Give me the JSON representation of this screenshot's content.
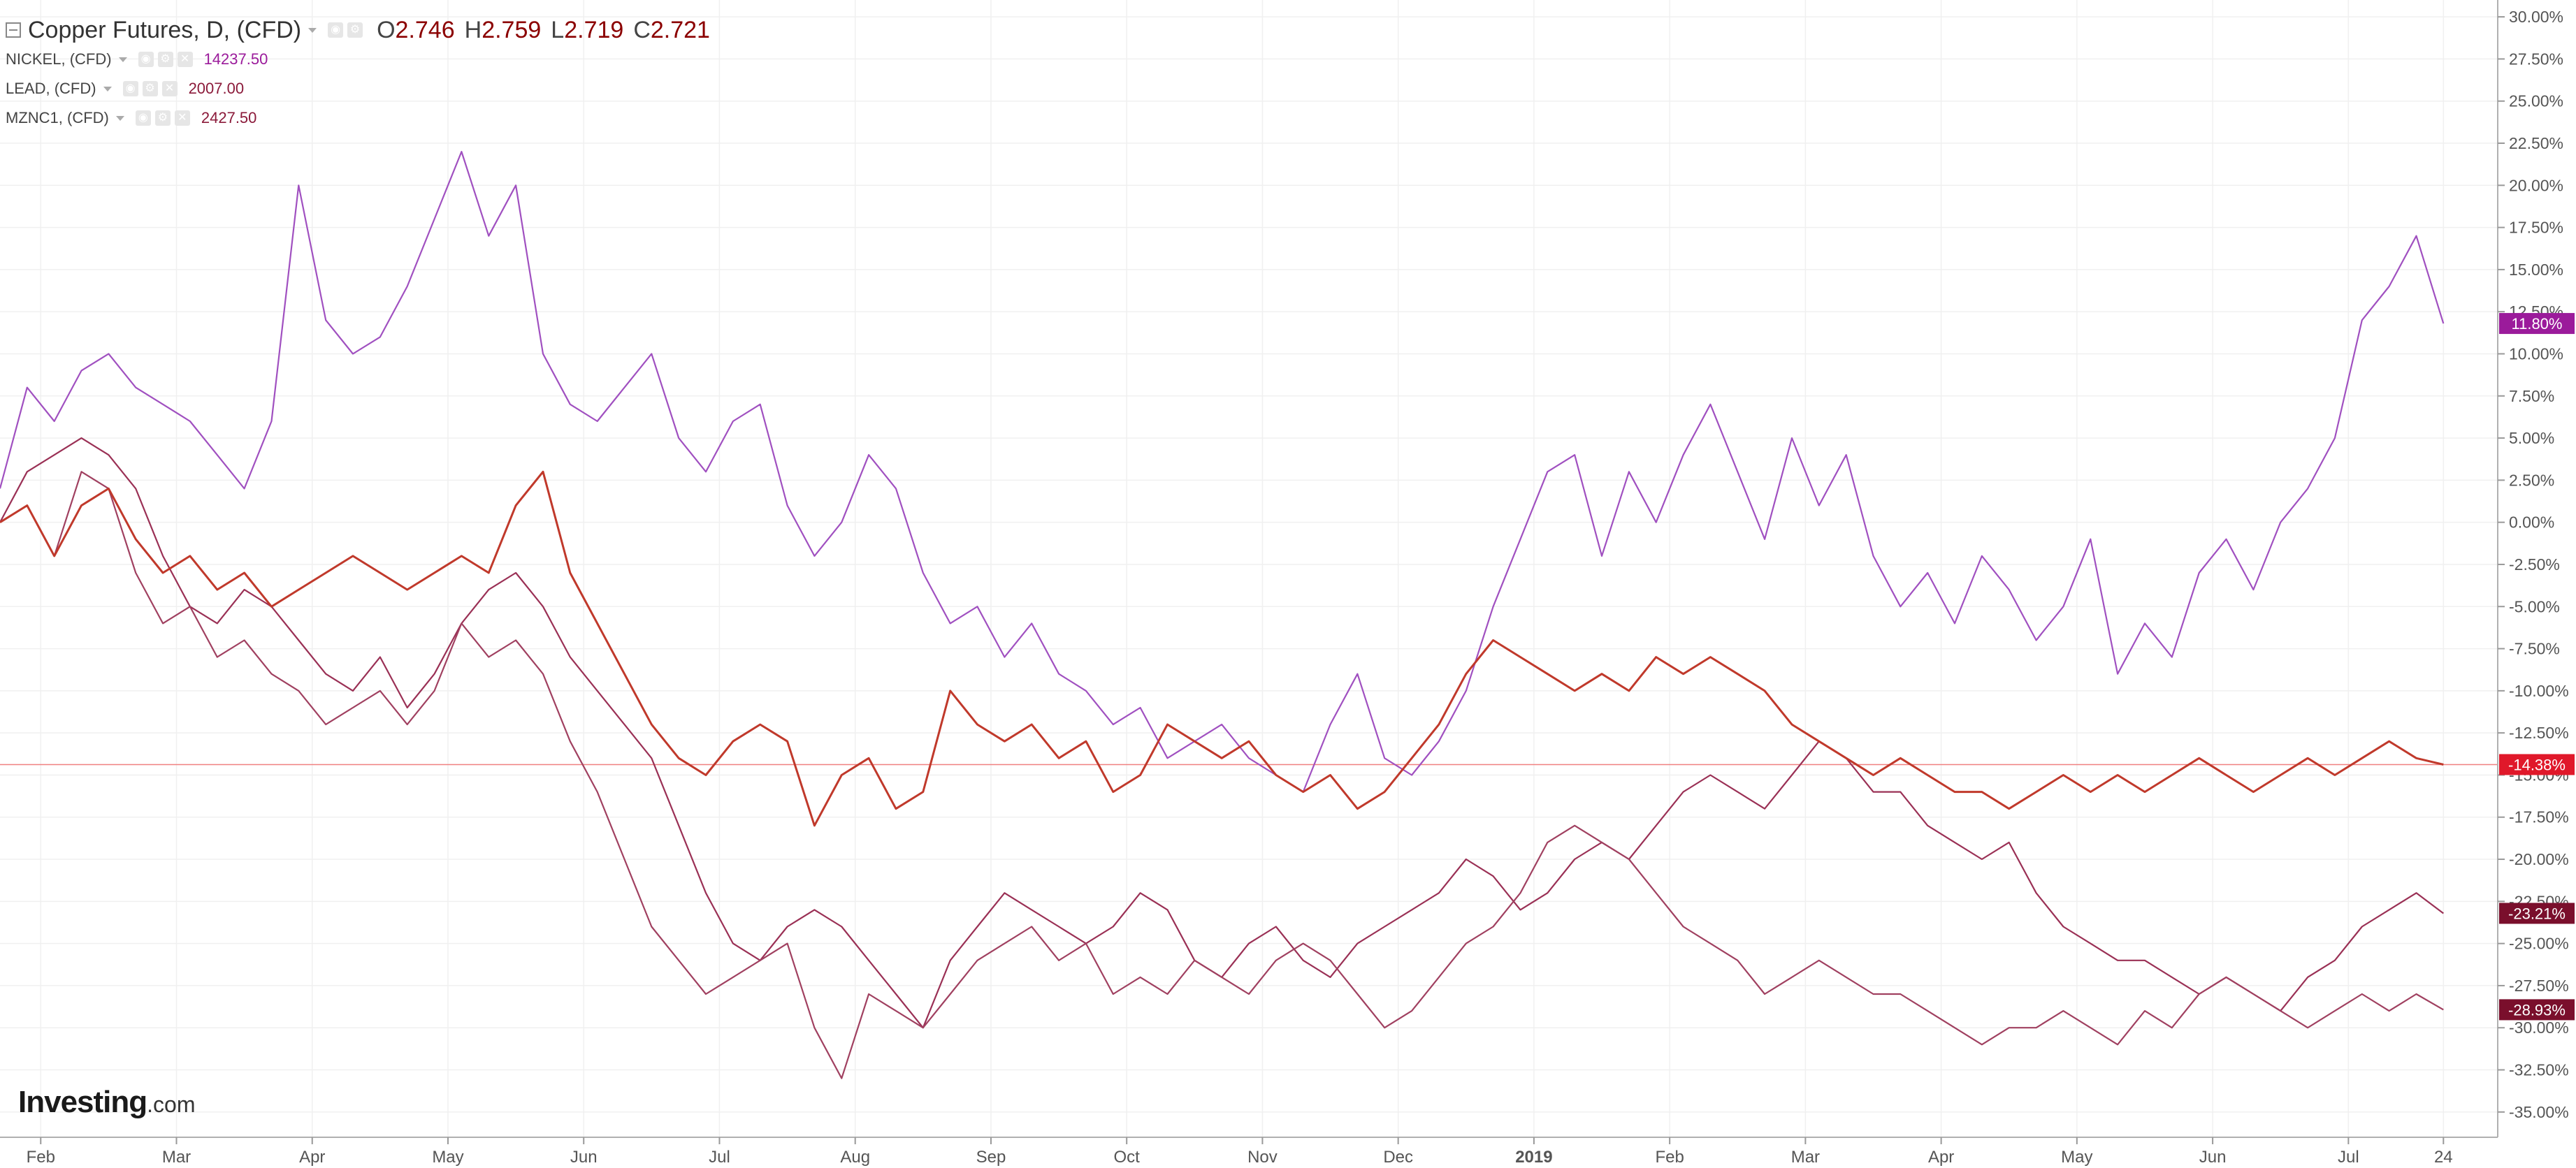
{
  "header": {
    "main_label": "Copper Futures, D, (CFD)",
    "ohlc": {
      "o_label": "O",
      "o": "2.746",
      "h_label": "H",
      "h": "2.759",
      "l_label": "L",
      "l": "2.719",
      "c_label": "C",
      "c": "2.721"
    },
    "series_rows": [
      {
        "label": "NICKEL, (CFD)",
        "value": "14237.50",
        "color": "#9b1b9b"
      },
      {
        "label": "LEAD, (CFD)",
        "value": "2007.00",
        "color": "#8b1a3a"
      },
      {
        "label": "MZNC1, (CFD)",
        "value": "2427.50",
        "color": "#8b1a3a"
      }
    ]
  },
  "branding": {
    "logo_main": "Investing",
    "logo_suffix": ".com"
  },
  "chart_data": {
    "type": "line",
    "title": "Copper Futures, D, (CFD)",
    "y_axis": {
      "side": "right",
      "unit": "%",
      "ylim": [
        -36.5,
        31
      ],
      "ticks": [
        "30.00%",
        "27.50%",
        "25.00%",
        "22.50%",
        "20.00%",
        "17.50%",
        "15.00%",
        "12.50%",
        "10.00%",
        "7.50%",
        "5.00%",
        "2.50%",
        "0.00%",
        "-2.50%",
        "-5.00%",
        "-7.50%",
        "-10.00%",
        "-12.50%",
        "-15.00%",
        "-17.50%",
        "-20.00%",
        "-22.50%",
        "-25.00%",
        "-27.50%",
        "-30.00%",
        "-32.50%",
        "-35.00%"
      ]
    },
    "x_axis": {
      "labels": [
        "Feb",
        "Mar",
        "Apr",
        "May",
        "Jun",
        "Jul",
        "Aug",
        "Sep",
        "Oct",
        "Nov",
        "Dec",
        "2019",
        "Feb",
        "Mar",
        "Apr",
        "May",
        "Jun",
        "Jul",
        "24"
      ],
      "label_pos": [
        0.3,
        1.3,
        2.3,
        3.3,
        4.3,
        5.3,
        6.3,
        7.3,
        8.3,
        9.3,
        10.3,
        11.3,
        12.3,
        13.3,
        14.3,
        15.3,
        16.3,
        17.3,
        18.0
      ],
      "range": [
        0,
        18.4
      ]
    },
    "grid": true,
    "current_line_value": -14.38,
    "series": [
      {
        "name": "NICKEL, (CFD)",
        "color": "#a050c0",
        "last_label": "11.80%",
        "label_color": "#9b1b9b",
        "x": [
          0,
          0.2,
          0.4,
          0.6,
          0.8,
          1.0,
          1.2,
          1.4,
          1.6,
          1.8,
          2.0,
          2.2,
          2.4,
          2.6,
          2.8,
          3.0,
          3.2,
          3.4,
          3.6,
          3.8,
          4.0,
          4.2,
          4.4,
          4.6,
          4.8,
          5.0,
          5.2,
          5.4,
          5.6,
          5.8,
          6.0,
          6.2,
          6.4,
          6.6,
          6.8,
          7.0,
          7.2,
          7.4,
          7.6,
          7.8,
          8.0,
          8.2,
          8.4,
          8.6,
          8.8,
          9.0,
          9.2,
          9.4,
          9.6,
          9.8,
          10.0,
          10.2,
          10.4,
          10.6,
          10.8,
          11.0,
          11.2,
          11.4,
          11.6,
          11.8,
          12.0,
          12.2,
          12.4,
          12.6,
          12.8,
          13.0,
          13.2,
          13.4,
          13.6,
          13.8,
          14.0,
          14.2,
          14.4,
          14.6,
          14.8,
          15.0,
          15.2,
          15.4,
          15.6,
          15.8,
          16.0,
          16.2,
          16.4,
          16.6,
          16.8,
          17.0,
          17.2,
          17.4,
          17.6,
          17.8,
          18.0
        ],
        "y": [
          2,
          8,
          6,
          9,
          10,
          8,
          7,
          6,
          4,
          2,
          6,
          20,
          12,
          10,
          11,
          14,
          18,
          22,
          17,
          20,
          10,
          7,
          6,
          8,
          10,
          5,
          3,
          6,
          7,
          1,
          -2,
          0,
          4,
          2,
          -3,
          -6,
          -5,
          -8,
          -6,
          -9,
          -10,
          -12,
          -11,
          -14,
          -13,
          -12,
          -14,
          -15,
          -16,
          -12,
          -9,
          -14,
          -15,
          -13,
          -10,
          -5,
          -1,
          3,
          4,
          -2,
          3,
          0,
          4,
          7,
          3,
          -1,
          5,
          1,
          4,
          -2,
          -5,
          -3,
          -6,
          -2,
          -4,
          -7,
          -5,
          -1,
          -9,
          -6,
          -8,
          -3,
          -1,
          -4,
          0,
          2,
          5,
          12,
          14,
          17,
          11.8
        ]
      },
      {
        "name": "LEAD, (CFD)",
        "color": "#9a3055",
        "last_label": "-23.21%",
        "label_color": "#7a0f2c",
        "x": [
          0,
          0.2,
          0.4,
          0.6,
          0.8,
          1.0,
          1.2,
          1.4,
          1.6,
          1.8,
          2.0,
          2.2,
          2.4,
          2.6,
          2.8,
          3.0,
          3.2,
          3.4,
          3.6,
          3.8,
          4.0,
          4.2,
          4.4,
          4.6,
          4.8,
          5.0,
          5.2,
          5.4,
          5.6,
          5.8,
          6.0,
          6.2,
          6.4,
          6.6,
          6.8,
          7.0,
          7.2,
          7.4,
          7.6,
          7.8,
          8.0,
          8.2,
          8.4,
          8.6,
          8.8,
          9.0,
          9.2,
          9.4,
          9.6,
          9.8,
          10.0,
          10.2,
          10.4,
          10.6,
          10.8,
          11.0,
          11.2,
          11.4,
          11.6,
          11.8,
          12.0,
          12.2,
          12.4,
          12.6,
          12.8,
          13.0,
          13.2,
          13.4,
          13.6,
          13.8,
          14.0,
          14.2,
          14.4,
          14.6,
          14.8,
          15.0,
          15.2,
          15.4,
          15.6,
          15.8,
          16.0,
          16.2,
          16.4,
          16.6,
          16.8,
          17.0,
          17.2,
          17.4,
          17.6,
          17.8,
          18.0
        ],
        "y": [
          0,
          3,
          4,
          5,
          4,
          2,
          -2,
          -5,
          -6,
          -4,
          -5,
          -7,
          -9,
          -10,
          -8,
          -11,
          -9,
          -6,
          -4,
          -3,
          -5,
          -8,
          -10,
          -12,
          -14,
          -18,
          -22,
          -25,
          -26,
          -24,
          -23,
          -24,
          -26,
          -28,
          -30,
          -26,
          -24,
          -22,
          -23,
          -24,
          -25,
          -24,
          -22,
          -23,
          -26,
          -27,
          -25,
          -24,
          -26,
          -27,
          -25,
          -24,
          -23,
          -22,
          -20,
          -21,
          -23,
          -22,
          -20,
          -19,
          -20,
          -18,
          -16,
          -15,
          -16,
          -17,
          -15,
          -13,
          -14,
          -16,
          -16,
          -18,
          -19,
          -20,
          -19,
          -22,
          -24,
          -25,
          -26,
          -26,
          -27,
          -28,
          -27,
          -28,
          -29,
          -27,
          -26,
          -24,
          -23,
          -22,
          -23.21
        ]
      },
      {
        "name": "MZNC1, (CFD)",
        "color": "#a04060",
        "last_label": "-28.93%",
        "label_color": "#7a0f2c",
        "x": [
          0,
          0.2,
          0.4,
          0.6,
          0.8,
          1.0,
          1.2,
          1.4,
          1.6,
          1.8,
          2.0,
          2.2,
          2.4,
          2.6,
          2.8,
          3.0,
          3.2,
          3.4,
          3.6,
          3.8,
          4.0,
          4.2,
          4.4,
          4.6,
          4.8,
          5.0,
          5.2,
          5.4,
          5.6,
          5.8,
          6.0,
          6.2,
          6.4,
          6.6,
          6.8,
          7.0,
          7.2,
          7.4,
          7.6,
          7.8,
          8.0,
          8.2,
          8.4,
          8.6,
          8.8,
          9.0,
          9.2,
          9.4,
          9.6,
          9.8,
          10.0,
          10.2,
          10.4,
          10.6,
          10.8,
          11.0,
          11.2,
          11.4,
          11.6,
          11.8,
          12.0,
          12.2,
          12.4,
          12.6,
          12.8,
          13.0,
          13.2,
          13.4,
          13.6,
          13.8,
          14.0,
          14.2,
          14.4,
          14.6,
          14.8,
          15.0,
          15.2,
          15.4,
          15.6,
          15.8,
          16.0,
          16.2,
          16.4,
          16.6,
          16.8,
          17.0,
          17.2,
          17.4,
          17.6,
          17.8,
          18.0
        ],
        "y": [
          0,
          1,
          -2,
          3,
          2,
          -3,
          -6,
          -5,
          -8,
          -7,
          -9,
          -10,
          -12,
          -11,
          -10,
          -12,
          -10,
          -6,
          -8,
          -7,
          -9,
          -13,
          -16,
          -20,
          -24,
          -26,
          -28,
          -27,
          -26,
          -25,
          -30,
          -33,
          -28,
          -29,
          -30,
          -28,
          -26,
          -25,
          -24,
          -26,
          -25,
          -28,
          -27,
          -28,
          -26,
          -27,
          -28,
          -26,
          -25,
          -26,
          -28,
          -30,
          -29,
          -27,
          -25,
          -24,
          -22,
          -19,
          -18,
          -19,
          -20,
          -22,
          -24,
          -25,
          -26,
          -28,
          -27,
          -26,
          -27,
          -28,
          -28,
          -29,
          -30,
          -31,
          -30,
          -30,
          -29,
          -30,
          -31,
          -29,
          -30,
          -28,
          -27,
          -28,
          -29,
          -30,
          -29,
          -28,
          -29,
          -28,
          -28.93
        ]
      },
      {
        "name": "Copper Futures, D, (CFD)",
        "color": "#c0392b",
        "last_label": "-14.38%",
        "label_color": "#e0182a",
        "x": [
          0,
          0.2,
          0.4,
          0.6,
          0.8,
          1.0,
          1.2,
          1.4,
          1.6,
          1.8,
          2.0,
          2.2,
          2.4,
          2.6,
          2.8,
          3.0,
          3.2,
          3.4,
          3.6,
          3.8,
          4.0,
          4.2,
          4.4,
          4.6,
          4.8,
          5.0,
          5.2,
          5.4,
          5.6,
          5.8,
          6.0,
          6.2,
          6.4,
          6.6,
          6.8,
          7.0,
          7.2,
          7.4,
          7.6,
          7.8,
          8.0,
          8.2,
          8.4,
          8.6,
          8.8,
          9.0,
          9.2,
          9.4,
          9.6,
          9.8,
          10.0,
          10.2,
          10.4,
          10.6,
          10.8,
          11.0,
          11.2,
          11.4,
          11.6,
          11.8,
          12.0,
          12.2,
          12.4,
          12.6,
          12.8,
          13.0,
          13.2,
          13.4,
          13.6,
          13.8,
          14.0,
          14.2,
          14.4,
          14.6,
          14.8,
          15.0,
          15.2,
          15.4,
          15.6,
          15.8,
          16.0,
          16.2,
          16.4,
          16.6,
          16.8,
          17.0,
          17.2,
          17.4,
          17.6,
          17.8,
          18.0
        ],
        "y": [
          0,
          1,
          -2,
          1,
          2,
          -1,
          -3,
          -2,
          -4,
          -3,
          -5,
          -4,
          -3,
          -2,
          -3,
          -4,
          -3,
          -2,
          -3,
          1,
          3,
          -3,
          -6,
          -9,
          -12,
          -14,
          -15,
          -13,
          -12,
          -13,
          -18,
          -15,
          -14,
          -17,
          -16,
          -10,
          -12,
          -13,
          -12,
          -14,
          -13,
          -16,
          -15,
          -12,
          -13,
          -14,
          -13,
          -15,
          -16,
          -15,
          -17,
          -16,
          -14,
          -12,
          -9,
          -7,
          -8,
          -9,
          -10,
          -9,
          -10,
          -8,
          -9,
          -8,
          -9,
          -10,
          -12,
          -13,
          -14,
          -15,
          -14,
          -15,
          -16,
          -16,
          -17,
          -16,
          -15,
          -16,
          -15,
          -16,
          -15,
          -14,
          -15,
          -16,
          -15,
          -14,
          -15,
          -14,
          -13,
          -14,
          -14.38
        ]
      }
    ]
  }
}
